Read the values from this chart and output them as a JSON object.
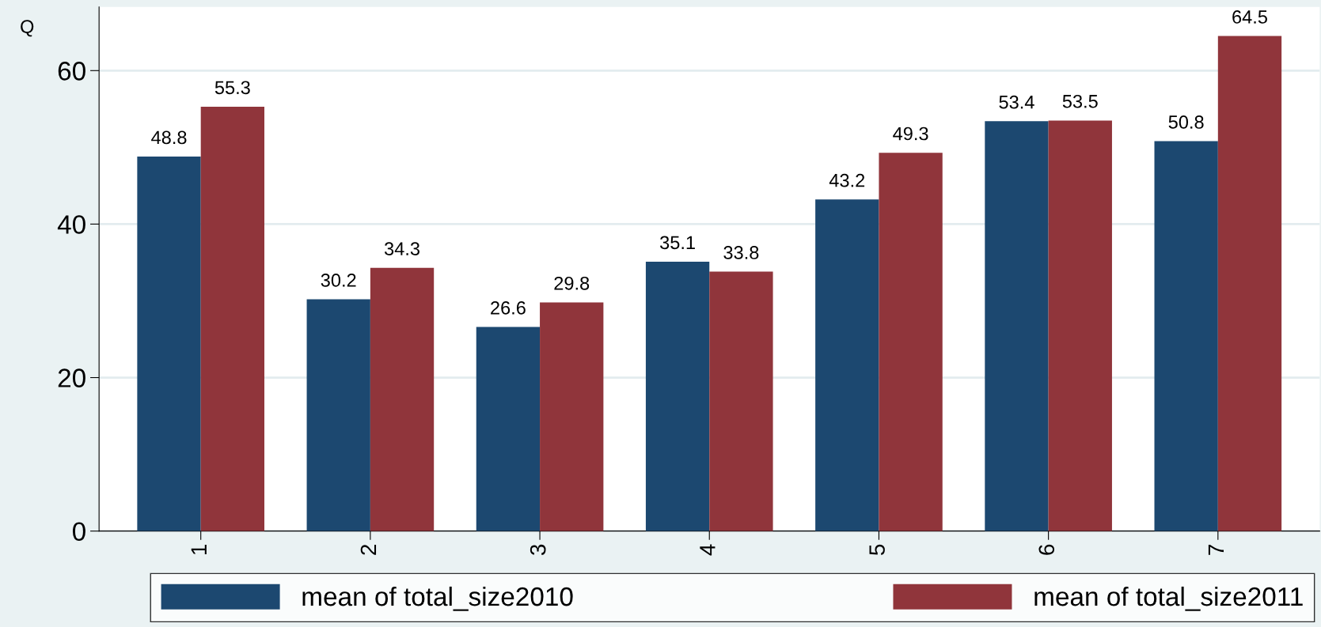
{
  "chart_data": {
    "type": "bar",
    "ylabel": "Q",
    "categories": [
      "1",
      "2",
      "3",
      "4",
      "5",
      "6",
      "7"
    ],
    "series": [
      {
        "name": "mean of total_size2010",
        "color": "#1c4870",
        "values": [
          48.8,
          30.2,
          26.6,
          35.1,
          43.2,
          53.4,
          50.8
        ]
      },
      {
        "name": "mean of total_size2011",
        "color": "#90353b",
        "values": [
          55.3,
          34.3,
          29.8,
          33.8,
          49.3,
          53.5,
          64.5
        ]
      }
    ],
    "ylim": [
      0,
      68.3
    ],
    "yticks": [
      0,
      20,
      40,
      60
    ],
    "grid": "y",
    "legend": "bottom",
    "data_labels": true
  }
}
